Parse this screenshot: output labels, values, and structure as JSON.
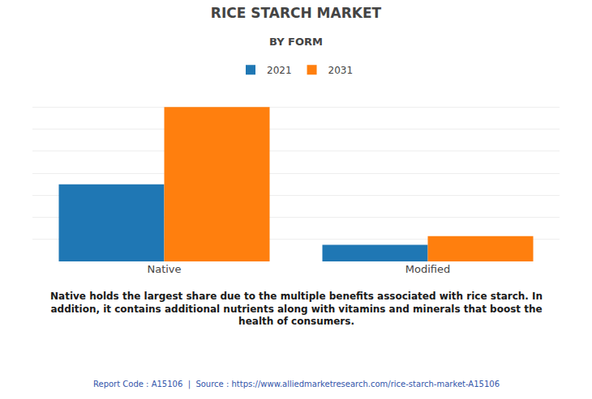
{
  "chart_data": {
    "type": "bar",
    "title": "RICE STARCH MARKET",
    "subtitle": "BY FORM",
    "categories": [
      "Native",
      "Modified"
    ],
    "series": [
      {
        "name": "2021",
        "values": [
          3.5,
          0.75
        ]
      },
      {
        "name": "2031",
        "values": [
          7.0,
          1.15
        ]
      }
    ],
    "ylim": [
      0,
      8
    ],
    "yticks": [
      0,
      1,
      2,
      3,
      4,
      5,
      6,
      7,
      8
    ],
    "grid": true,
    "legend": "top",
    "tick_labels": "x",
    "annotation": "Native holds the largest share due to the multiple benefits associated with rice starch. In\naddition, it contains additional nutrients along with vitamins and minerals that boost the\nhealth of consumers.",
    "footer": "Report Code : A15106  |  Source : https://www.alliedmarketresearch.com/rice-starch-market-A15106"
  }
}
